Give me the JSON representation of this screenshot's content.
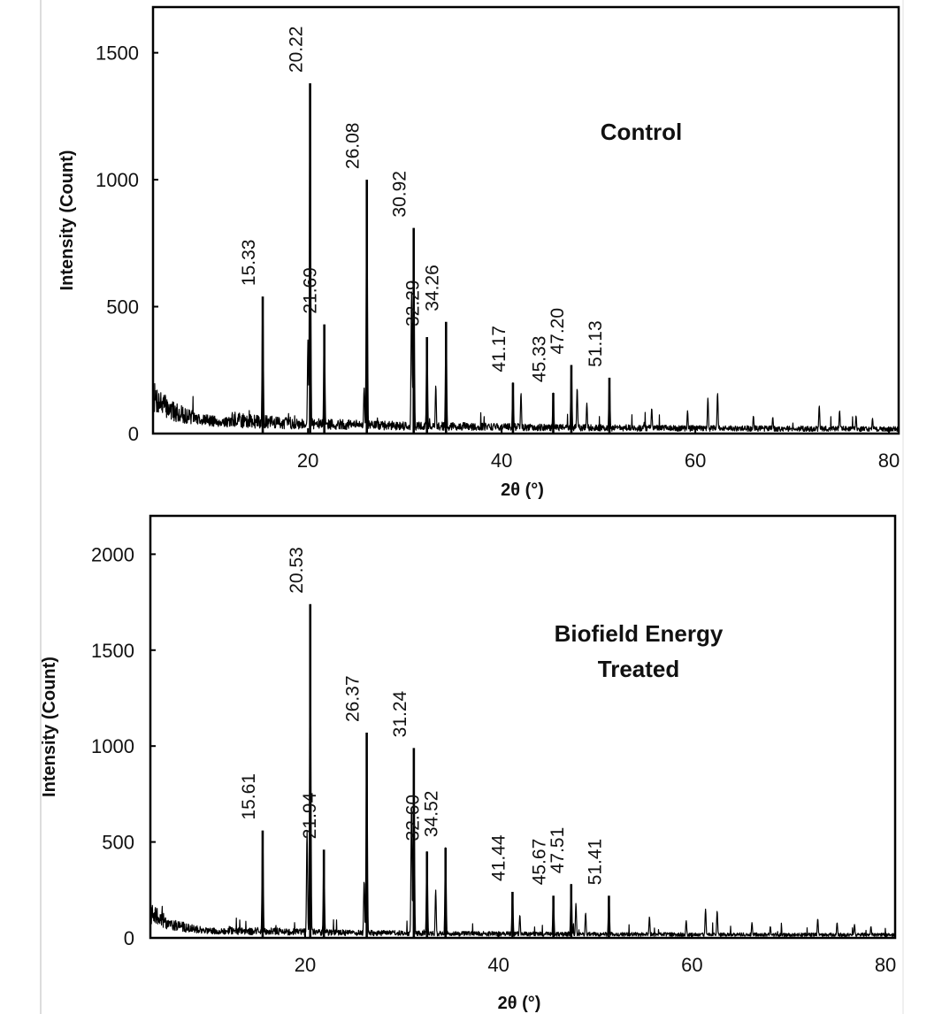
{
  "chart_data": [
    {
      "type": "line",
      "panel_title": [
        "Control"
      ],
      "xlabel": "2θ (°)",
      "ylabel": "Intensity (Count)",
      "xlim": [
        4,
        81
      ],
      "ylim": [
        0,
        1680
      ],
      "x_ticks": [
        20,
        40,
        60,
        80
      ],
      "y_ticks": [
        0,
        500,
        1000,
        1500
      ],
      "grid": false,
      "legend": "none",
      "line_color": "#000000",
      "baseline": [
        {
          "x": 4.0,
          "y": 230
        },
        {
          "x": 6.0,
          "y": 140
        },
        {
          "x": 8.0,
          "y": 100
        },
        {
          "x": 10.0,
          "y": 80
        },
        {
          "x": 14.0,
          "y": 60
        },
        {
          "x": 20.0,
          "y": 48
        },
        {
          "x": 30.0,
          "y": 38
        },
        {
          "x": 45.0,
          "y": 30
        },
        {
          "x": 60.0,
          "y": 26
        },
        {
          "x": 81.0,
          "y": 22
        }
      ],
      "peaks": [
        {
          "x": 15.33,
          "y": 540,
          "label": "15.33"
        },
        {
          "x": 20.22,
          "y": 1380,
          "label": "20.22"
        },
        {
          "x": 21.69,
          "y": 430,
          "label": "21.69"
        },
        {
          "x": 26.08,
          "y": 1000,
          "label": "26.08"
        },
        {
          "x": 30.92,
          "y": 810,
          "label": "30.92"
        },
        {
          "x": 32.29,
          "y": 380,
          "label": "32.29"
        },
        {
          "x": 34.26,
          "y": 440,
          "label": "34.26"
        },
        {
          "x": 41.17,
          "y": 200,
          "label": "41.17"
        },
        {
          "x": 45.33,
          "y": 160,
          "label": "45.33"
        },
        {
          "x": 47.2,
          "y": 270,
          "label": "47.20"
        },
        {
          "x": 51.13,
          "y": 220,
          "label": "51.13"
        }
      ],
      "minor_peaks": [
        {
          "x": 20.0,
          "y": 370
        },
        {
          "x": 25.8,
          "y": 180
        },
        {
          "x": 30.7,
          "y": 560
        },
        {
          "x": 33.2,
          "y": 190
        },
        {
          "x": 42.0,
          "y": 160
        },
        {
          "x": 47.8,
          "y": 180
        },
        {
          "x": 48.8,
          "y": 120
        },
        {
          "x": 55.5,
          "y": 100
        },
        {
          "x": 59.2,
          "y": 90
        },
        {
          "x": 61.3,
          "y": 140
        },
        {
          "x": 62.3,
          "y": 160
        },
        {
          "x": 66.0,
          "y": 70
        },
        {
          "x": 68.0,
          "y": 65
        },
        {
          "x": 72.8,
          "y": 110
        },
        {
          "x": 74.9,
          "y": 90
        },
        {
          "x": 76.6,
          "y": 70
        },
        {
          "x": 78.3,
          "y": 60
        }
      ]
    },
    {
      "type": "line",
      "panel_title": [
        "Biofield Energy",
        "Treated"
      ],
      "xlabel": "2θ (°)",
      "ylabel": "Intensity (Count)",
      "xlim": [
        4,
        81
      ],
      "ylim": [
        0,
        2200
      ],
      "x_ticks": [
        20,
        40,
        60,
        80
      ],
      "y_ticks": [
        0,
        500,
        1000,
        1500,
        2000
      ],
      "grid": false,
      "legend": "none",
      "line_color": "#000000",
      "baseline": [
        {
          "x": 4.0,
          "y": 200
        },
        {
          "x": 6.0,
          "y": 120
        },
        {
          "x": 8.0,
          "y": 80
        },
        {
          "x": 10.0,
          "y": 60
        },
        {
          "x": 14.0,
          "y": 45
        },
        {
          "x": 20.0,
          "y": 38
        },
        {
          "x": 30.0,
          "y": 30
        },
        {
          "x": 45.0,
          "y": 25
        },
        {
          "x": 60.0,
          "y": 22
        },
        {
          "x": 81.0,
          "y": 20
        }
      ],
      "peaks": [
        {
          "x": 15.61,
          "y": 560,
          "label": "15.61"
        },
        {
          "x": 20.53,
          "y": 1740,
          "label": "20.53"
        },
        {
          "x": 21.94,
          "y": 460,
          "label": "21.94"
        },
        {
          "x": 26.37,
          "y": 1070,
          "label": "26.37"
        },
        {
          "x": 31.24,
          "y": 990,
          "label": "31.24"
        },
        {
          "x": 32.6,
          "y": 450,
          "label": "32.60"
        },
        {
          "x": 34.52,
          "y": 470,
          "label": "34.52"
        },
        {
          "x": 41.44,
          "y": 240,
          "label": "41.44"
        },
        {
          "x": 45.67,
          "y": 220,
          "label": "45.67"
        },
        {
          "x": 47.51,
          "y": 280,
          "label": "47.51"
        },
        {
          "x": 51.41,
          "y": 220,
          "label": "51.41"
        }
      ],
      "minor_peaks": [
        {
          "x": 20.2,
          "y": 560
        },
        {
          "x": 26.1,
          "y": 300
        },
        {
          "x": 31.0,
          "y": 700
        },
        {
          "x": 33.5,
          "y": 250
        },
        {
          "x": 42.2,
          "y": 120
        },
        {
          "x": 48.0,
          "y": 180
        },
        {
          "x": 49.0,
          "y": 130
        },
        {
          "x": 55.6,
          "y": 110
        },
        {
          "x": 59.4,
          "y": 90
        },
        {
          "x": 61.4,
          "y": 150
        },
        {
          "x": 62.6,
          "y": 140
        },
        {
          "x": 66.2,
          "y": 80
        },
        {
          "x": 68.1,
          "y": 60
        },
        {
          "x": 73.0,
          "y": 100
        },
        {
          "x": 75.0,
          "y": 80
        },
        {
          "x": 76.8,
          "y": 70
        },
        {
          "x": 78.5,
          "y": 60
        }
      ]
    }
  ]
}
